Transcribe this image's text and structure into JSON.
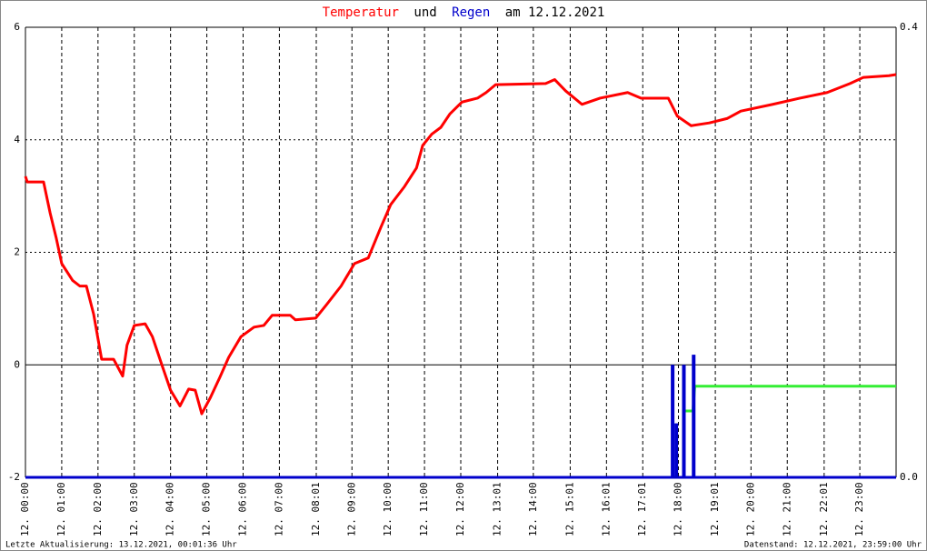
{
  "chart_data": {
    "type": "line",
    "title_parts": [
      "Temperatur",
      "und",
      "Regen",
      "am 12.12.2021"
    ],
    "footer_left": "Letzte Aktualisierung: 13.12.2021, 00:01:36 Uhr",
    "footer_right": "Datenstand: 12.12.2021, 23:59:00 Uhr",
    "xlim": [
      0,
      24
    ],
    "xticks": [
      {
        "value": 0,
        "label": "12. 00:00"
      },
      {
        "value": 1,
        "label": "12. 01:00"
      },
      {
        "value": 2,
        "label": "12. 02:00"
      },
      {
        "value": 3,
        "label": "12. 03:00"
      },
      {
        "value": 4,
        "label": "12. 04:00"
      },
      {
        "value": 5,
        "label": "12. 05:00"
      },
      {
        "value": 6,
        "label": "12. 06:00"
      },
      {
        "value": 7,
        "label": "12. 07:00"
      },
      {
        "value": 8.0167,
        "label": "12. 08:01"
      },
      {
        "value": 9,
        "label": "12. 09:00"
      },
      {
        "value": 10,
        "label": "12. 10:00"
      },
      {
        "value": 11,
        "label": "12. 11:00"
      },
      {
        "value": 12,
        "label": "12. 12:00"
      },
      {
        "value": 13.0167,
        "label": "12. 13:01"
      },
      {
        "value": 14,
        "label": "12. 14:00"
      },
      {
        "value": 15.0167,
        "label": "12. 15:01"
      },
      {
        "value": 16.0167,
        "label": "12. 16:01"
      },
      {
        "value": 17.0167,
        "label": "12. 17:01"
      },
      {
        "value": 18,
        "label": "12. 18:00"
      },
      {
        "value": 19.0167,
        "label": "12. 19:01"
      },
      {
        "value": 20,
        "label": "12. 20:00"
      },
      {
        "value": 21,
        "label": "12. 21:00"
      },
      {
        "value": 22.0167,
        "label": "12. 22:01"
      },
      {
        "value": 23,
        "label": "12. 23:00"
      }
    ],
    "ylim": [
      -2,
      6
    ],
    "yticks": [
      -2,
      0,
      2,
      4,
      6
    ],
    "y2lim": [
      0,
      0.4
    ],
    "y2ticks": [
      {
        "value": 0,
        "label": "0.0"
      },
      0.4
    ],
    "grid": true,
    "series": [
      {
        "color": "#ff0000",
        "x": [
          0,
          0.05,
          0.5,
          0.68,
          0.85,
          1.0,
          1.3,
          1.5,
          1.68,
          1.88,
          2.1,
          2.43,
          2.68,
          2.8,
          3.0,
          3.3,
          3.5,
          3.76,
          4.0,
          4.26,
          4.5,
          4.68,
          4.86,
          5.1,
          5.36,
          5.6,
          5.94,
          6.3,
          6.57,
          6.8,
          7.3,
          7.44,
          8.0,
          8.3,
          8.7,
          9.07,
          9.45,
          9.8,
          10.07,
          10.45,
          10.78,
          10.95,
          11.2,
          11.45,
          11.7,
          12.03,
          12.46,
          12.7,
          12.96,
          14.34,
          14.59,
          14.89,
          15.34,
          15.84,
          16.6,
          16.97,
          17.72,
          17.97,
          18.35,
          18.85,
          19.35,
          19.72,
          20.6,
          21.35,
          22.1,
          22.73,
          23.1,
          23.8,
          24
        ],
        "values": [
          3.35,
          3.25,
          3.25,
          2.7,
          2.25,
          1.8,
          1.5,
          1.4,
          1.4,
          0.9,
          0.1,
          0.1,
          -0.2,
          0.35,
          0.7,
          0.73,
          0.5,
          0,
          -0.45,
          -0.73,
          -0.43,
          -0.45,
          -0.87,
          -0.58,
          -0.22,
          0.13,
          0.5,
          0.67,
          0.7,
          0.88,
          0.88,
          0.8,
          0.83,
          1.07,
          1.4,
          1.8,
          1.9,
          2.45,
          2.85,
          3.17,
          3.5,
          3.9,
          4.1,
          4.22,
          4.46,
          4.67,
          4.74,
          4.84,
          4.98,
          5.0,
          5.07,
          4.87,
          4.63,
          4.74,
          4.84,
          4.74,
          4.74,
          4.42,
          4.25,
          4.3,
          4.38,
          4.51,
          4.63,
          4.74,
          4.84,
          5.0,
          5.11,
          5.14,
          5.16
        ]
      },
      {
        "type": "bar",
        "axis": "y2",
        "color": "#0000cc",
        "x": [
          17.84,
          17.94,
          18.15,
          18.42
        ],
        "values": [
          0.1,
          0.048,
          0.1,
          0.109
        ]
      },
      {
        "axis": "y2",
        "color": "#33ee33",
        "x": [
          18.15,
          18.4,
          18.45,
          24
        ],
        "values": [
          0.059,
          0.059,
          0.081,
          0.081
        ]
      }
    ]
  }
}
